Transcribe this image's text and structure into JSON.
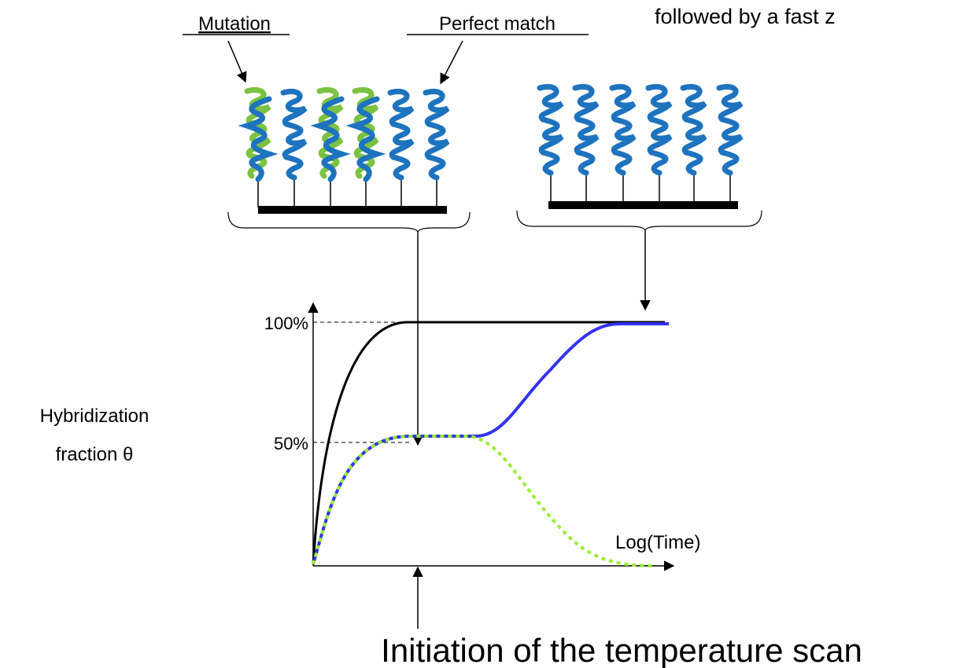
{
  "labels": {
    "mutation": "Mutation",
    "perfect_match": "Perfect match",
    "top_note": "followed by a fast z"
  },
  "axis": {
    "y_label_line1": "Hybridization",
    "y_label_line2": "fraction θ",
    "tick_100": "100%",
    "tick_50": "50%",
    "x_label": "Log(Time)"
  },
  "caption": "Initiation of the temperature scan"
}
